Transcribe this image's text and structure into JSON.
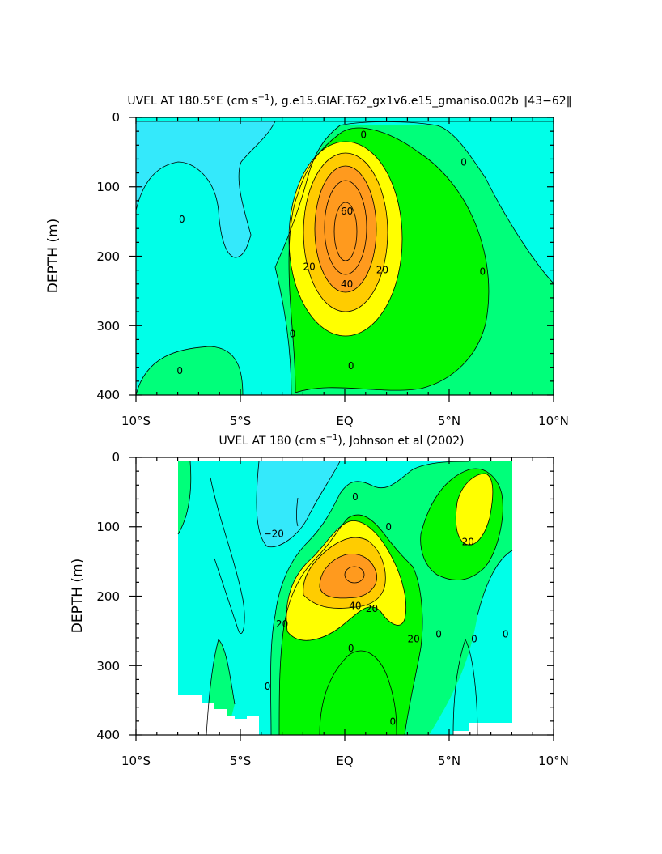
{
  "chart_data": [
    {
      "type": "heatmap",
      "subtype": "filled-contour",
      "title_prefix": "UVEL AT 180.5°E (cm s",
      "title_exp": "−1",
      "title_suffix": "), g.e15.GIAF.T62_gx1v6.e15_gmaniso.002b ‖43−62‖",
      "ylabel": "DEPTH (m)",
      "xlim": [
        -10,
        10
      ],
      "ylim": [
        400,
        0
      ],
      "x_ticks": [
        -10,
        -5,
        0,
        5,
        10
      ],
      "x_tick_labels": [
        "10°S",
        "5°S",
        "EQ",
        "5°N",
        "10°N"
      ],
      "y_ticks": [
        0,
        100,
        200,
        300,
        400
      ],
      "y_tick_labels": [
        "0",
        "100",
        "200",
        "300",
        "400"
      ],
      "contour_levels": [
        -20,
        -10,
        0,
        10,
        20,
        30,
        40,
        50,
        60
      ],
      "core": {
        "lon": 0,
        "depth": 165,
        "max_value": 65
      },
      "contour_labels": [
        {
          "text": "0",
          "x": 0.9,
          "y": 25
        },
        {
          "text": "0",
          "x": 5.7,
          "y": 65
        },
        {
          "text": "0",
          "x": -7.8,
          "y": 147
        },
        {
          "text": "60",
          "x": 0.1,
          "y": 135
        },
        {
          "text": "20",
          "x": -1.7,
          "y": 215
        },
        {
          "text": "20",
          "x": 1.8,
          "y": 220
        },
        {
          "text": "40",
          "x": 0.1,
          "y": 240
        },
        {
          "text": "0",
          "x": 6.6,
          "y": 222
        },
        {
          "text": "0",
          "x": -2.5,
          "y": 312
        },
        {
          "text": "0",
          "x": 0.3,
          "y": 358
        },
        {
          "text": "0",
          "x": -7.9,
          "y": 365
        }
      ]
    },
    {
      "type": "heatmap",
      "subtype": "filled-contour",
      "title_prefix": "UVEL AT 180 (cm s",
      "title_exp": "−1",
      "title_suffix": "), Johnson et al (2002)",
      "ylabel": "DEPTH (m)",
      "xlim": [
        -10,
        10
      ],
      "ylim": [
        400,
        0
      ],
      "x_ticks": [
        -10,
        -5,
        0,
        5,
        10
      ],
      "x_tick_labels": [
        "10°S",
        "5°S",
        "EQ",
        "5°N",
        "10°N"
      ],
      "y_ticks": [
        0,
        100,
        200,
        300,
        400
      ],
      "y_tick_labels": [
        "0",
        "100",
        "200",
        "300",
        "400"
      ],
      "data_lon_range": [
        -8,
        8
      ],
      "contour_levels": [
        -20,
        -10,
        0,
        10,
        20,
        30,
        40,
        50,
        60
      ],
      "core": {
        "lon": 0.4,
        "depth": 170,
        "max_value": 60
      },
      "contour_labels": [
        {
          "text": "−20",
          "x": -3.4,
          "y": 110
        },
        {
          "text": "0",
          "x": 2.1,
          "y": 100
        },
        {
          "text": "0",
          "x": 0.5,
          "y": 57
        },
        {
          "text": "20",
          "x": 5.9,
          "y": 122
        },
        {
          "text": "20",
          "x": -3.0,
          "y": 240
        },
        {
          "text": "40",
          "x": 0.5,
          "y": 214
        },
        {
          "text": "20",
          "x": 1.3,
          "y": 218
        },
        {
          "text": "0",
          "x": 0.3,
          "y": 275
        },
        {
          "text": "20",
          "x": 3.3,
          "y": 262
        },
        {
          "text": "0",
          "x": 4.5,
          "y": 255
        },
        {
          "text": "0",
          "x": 6.2,
          "y": 262
        },
        {
          "text": "0",
          "x": 7.7,
          "y": 255
        },
        {
          "text": "0",
          "x": -3.7,
          "y": 330
        },
        {
          "text": "0",
          "x": 2.3,
          "y": 381
        }
      ]
    }
  ],
  "palette": {
    "neg20": "#34e9fb",
    "neg10": "#00ffe8",
    "zero": "#00ff7a",
    "pos10": "#00f800",
    "pos20": "#ffff00",
    "pos30": "#ffcc00",
    "pos40": "#ff9a1e",
    "background": "#ffffff",
    "lines": "#000000"
  }
}
